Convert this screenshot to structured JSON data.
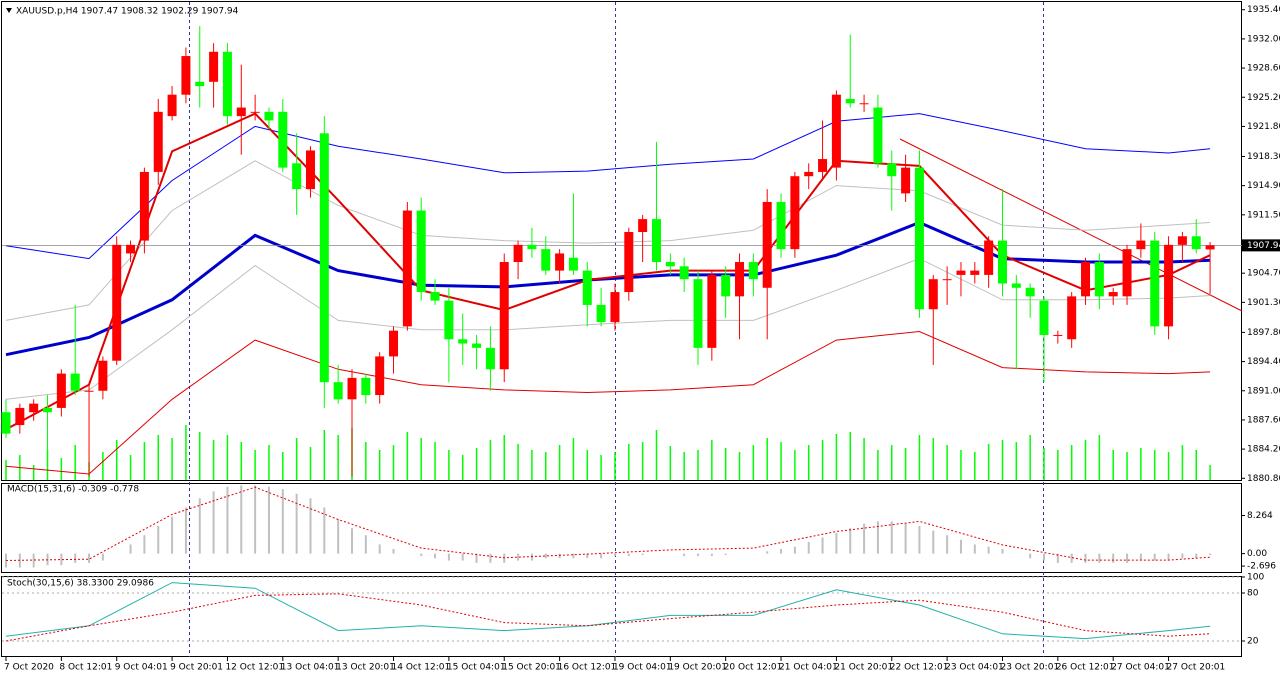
{
  "chart_data": [
    {
      "type": "candlestick",
      "title": "XAUUSD.p,H4 1907.47 1908.32 1902.29 1907.94",
      "categories": [
        "7 Oct 2020",
        null,
        null,
        null,
        "8 Oct 12:01",
        null,
        null,
        null,
        "9 Oct 04:01",
        null,
        null,
        null,
        "9 Oct 20:01",
        null,
        null,
        null,
        "12 Oct 12:01",
        null,
        null,
        null,
        "13 Oct 04:01",
        null,
        null,
        null,
        "13 Oct 20:01",
        null,
        null,
        null,
        "14 Oct 12:01",
        null,
        null,
        null,
        "15 Oct 04:01",
        null,
        null,
        null,
        "15 Oct 20:01",
        null,
        null,
        null,
        "16 Oct 12:01",
        null,
        null,
        null,
        "19 Oct 04:01",
        null,
        null,
        null,
        "19 Oct 20:01",
        null,
        null,
        null,
        "20 Oct 12:01",
        null,
        null,
        null,
        "21 Oct 04:01",
        null,
        null,
        null,
        "21 Oct 20:01",
        null,
        null,
        null,
        "22 Oct 12:01",
        null,
        null,
        null,
        "23 Oct 04:01",
        null,
        null,
        null,
        "23 Oct 20:01",
        null,
        null,
        null,
        "26 Oct 12:01",
        null,
        null,
        null,
        "27 Oct 04:01",
        null,
        null,
        null,
        "27 Oct 20:01",
        null,
        null,
        null
      ],
      "ohlc": [
        [
          1888.5,
          1890.0,
          1885.5,
          1886.0
        ],
        [
          1887.0,
          1889.5,
          1886.0,
          1889.0
        ],
        [
          1888.5,
          1890.0,
          1887.5,
          1889.5
        ],
        [
          1889.0,
          1890.5,
          1884.0,
          1888.5
        ],
        [
          1889.0,
          1893.5,
          1888.0,
          1893.0
        ],
        [
          1893.0,
          1901.0,
          1890.5,
          1891.0
        ],
        [
          1891.0,
          1892.0,
          1881.0,
          1891.0
        ],
        [
          1891.0,
          1895.0,
          1890.0,
          1894.5
        ],
        [
          1894.5,
          1909.0,
          1894.0,
          1908.0
        ],
        [
          1907.0,
          1908.5,
          1906.0,
          1908.0
        ],
        [
          1908.5,
          1917.0,
          1907.0,
          1916.5
        ],
        [
          1916.5,
          1925.0,
          1915.0,
          1923.5
        ],
        [
          1923.0,
          1926.5,
          1922.5,
          1925.5
        ],
        [
          1925.5,
          1931.0,
          1924.5,
          1930.0
        ],
        [
          1927.0,
          1933.5,
          1924.0,
          1926.5
        ],
        [
          1927.0,
          1931.5,
          1924.0,
          1930.5
        ],
        [
          1930.5,
          1931.5,
          1922.0,
          1923.0
        ],
        [
          1923.0,
          1929.0,
          1918.5,
          1924.0
        ],
        [
          1923.5,
          1925.5,
          1922.5,
          1923.5
        ],
        [
          1923.5,
          1924.0,
          1921.5,
          1922.5
        ],
        [
          1923.5,
          1925.0,
          1916.5,
          1917.0
        ],
        [
          1917.5,
          1921.0,
          1911.5,
          1914.5
        ],
        [
          1914.5,
          1919.5,
          1913.5,
          1919.0
        ],
        [
          1921.0,
          1923.0,
          1889.0,
          1892.0
        ],
        [
          1892.0,
          1894.0,
          1889.5,
          1890.0
        ],
        [
          1890.0,
          1893.5,
          1881.0,
          1892.5
        ],
        [
          1892.5,
          1893.0,
          1889.5,
          1890.5
        ],
        [
          1890.5,
          1895.5,
          1889.5,
          1895.0
        ],
        [
          1895.0,
          1898.5,
          1893.0,
          1898.0
        ],
        [
          1898.5,
          1913.0,
          1898.0,
          1912.0
        ],
        [
          1912.0,
          1913.5,
          1901.5,
          1902.5
        ],
        [
          1902.5,
          1904.0,
          1901.0,
          1901.5
        ],
        [
          1901.5,
          1903.0,
          1892.0,
          1897.0
        ],
        [
          1897.0,
          1900.0,
          1894.0,
          1896.5
        ],
        [
          1896.5,
          1897.5,
          1893.5,
          1896.0
        ],
        [
          1896.0,
          1898.5,
          1891.0,
          1893.5
        ],
        [
          1893.5,
          1907.0,
          1892.0,
          1906.0
        ],
        [
          1906.0,
          1908.5,
          1904.0,
          1908.0
        ],
        [
          1908.0,
          1910.0,
          1906.5,
          1907.5
        ],
        [
          1907.5,
          1909.0,
          1904.5,
          1905.0
        ],
        [
          1905.0,
          1907.5,
          1903.5,
          1907.0
        ],
        [
          1906.5,
          1914.0,
          1904.5,
          1905.0
        ],
        [
          1905.0,
          1906.0,
          1898.5,
          1901.0
        ],
        [
          1901.0,
          1903.0,
          1898.5,
          1899.0
        ],
        [
          1899.0,
          1903.5,
          1898.0,
          1902.5
        ],
        [
          1902.5,
          1910.0,
          1901.5,
          1909.5
        ],
        [
          1909.5,
          1911.5,
          1906.0,
          1911.0
        ],
        [
          1911.0,
          1920.0,
          1905.0,
          1906.0
        ],
        [
          1906.0,
          1907.0,
          1904.5,
          1905.5
        ],
        [
          1905.5,
          1906.5,
          1902.5,
          1904.0
        ],
        [
          1904.0,
          1905.0,
          1894.0,
          1896.0
        ],
        [
          1896.0,
          1905.0,
          1894.5,
          1904.5
        ],
        [
          1904.5,
          1905.5,
          1899.5,
          1902.0
        ],
        [
          1902.0,
          1907.0,
          1897.0,
          1906.0
        ],
        [
          1906.0,
          1907.0,
          1902.0,
          1904.0
        ],
        [
          1903.0,
          1914.5,
          1897.0,
          1913.0
        ],
        [
          1913.0,
          1914.0,
          1906.5,
          1907.5
        ],
        [
          1907.5,
          1916.5,
          1906.5,
          1916.0
        ],
        [
          1916.0,
          1917.5,
          1914.5,
          1916.5
        ],
        [
          1916.5,
          1922.5,
          1915.5,
          1918.0
        ],
        [
          1917.0,
          1926.0,
          1915.5,
          1925.5
        ],
        [
          1925.0,
          1932.5,
          1924.0,
          1924.5
        ],
        [
          1924.5,
          1925.5,
          1923.5,
          1924.5
        ],
        [
          1924.0,
          1925.5,
          1917.0,
          1917.5
        ],
        [
          1917.5,
          1919.0,
          1912.0,
          1916.0
        ],
        [
          1914.0,
          1918.5,
          1913.0,
          1917.0
        ],
        [
          1917.0,
          1919.0,
          1899.5,
          1900.5
        ],
        [
          1900.5,
          1904.5,
          1894.0,
          1904.0
        ],
        [
          1904.0,
          1905.5,
          1901.0,
          1904.0
        ],
        [
          1904.5,
          1906.0,
          1902.0,
          1905.0
        ],
        [
          1904.5,
          1906.0,
          1903.5,
          1905.0
        ],
        [
          1904.5,
          1909.0,
          1903.0,
          1908.5
        ],
        [
          1908.5,
          1914.5,
          1902.0,
          1903.5
        ],
        [
          1903.5,
          1904.5,
          1893.5,
          1903.0
        ],
        [
          1903.0,
          1903.5,
          1899.5,
          1902.0
        ],
        [
          1901.5,
          1902.0,
          1892.0,
          1897.5
        ],
        [
          1897.5,
          1898.0,
          1896.5,
          1897.5
        ],
        [
          1897.0,
          1902.5,
          1896.0,
          1902.0
        ],
        [
          1902.0,
          1906.5,
          1901.0,
          1906.0
        ],
        [
          1906.0,
          1907.0,
          1900.5,
          1902.0
        ],
        [
          1902.0,
          1903.0,
          1901.0,
          1902.5
        ],
        [
          1902.0,
          1908.0,
          1901.0,
          1907.5
        ],
        [
          1907.5,
          1910.5,
          1906.5,
          1908.5
        ],
        [
          1908.5,
          1909.5,
          1897.5,
          1898.5
        ],
        [
          1898.5,
          1909.0,
          1897.0,
          1908.0
        ],
        [
          1908.0,
          1909.5,
          1906.0,
          1909.0
        ],
        [
          1909.0,
          1911.0,
          1907.0,
          1907.5
        ],
        [
          1907.47,
          1908.32,
          1902.29,
          1907.94
        ]
      ],
      "up_color": "#ff0000",
      "down_color": "#00ff00",
      "volumes": [
        20,
        25,
        15,
        30,
        22,
        35,
        18,
        28,
        40,
        25,
        38,
        45,
        42,
        55,
        48,
        40,
        45,
        38,
        30,
        35,
        28,
        42,
        33,
        50,
        45,
        52,
        38,
        30,
        35,
        48,
        42,
        38,
        30,
        25,
        32,
        40,
        45,
        36,
        30,
        28,
        35,
        42,
        30,
        25,
        28,
        36,
        38,
        50,
        34,
        28,
        30,
        40,
        32,
        28,
        35,
        42,
        38,
        30,
        35,
        40,
        46,
        48,
        42,
        30,
        35,
        32,
        45,
        42,
        35,
        30,
        28,
        36,
        40,
        38,
        45,
        32,
        30,
        35,
        40,
        45,
        30,
        28,
        32,
        30,
        28,
        35,
        30,
        15
      ],
      "volume_color": "#00ff00",
      "line_x": [
        0,
        6,
        12,
        18,
        24,
        30,
        36,
        42,
        48,
        54,
        60,
        66,
        72,
        78,
        84,
        87
      ],
      "lines": [
        {
          "color": "#c0c0c0",
          "width": 1,
          "values": [
            1899.2,
            1901.0,
            1912.0,
            1917.8,
            1912.6,
            1909.1,
            1908.5,
            1908.2,
            1908.5,
            1909.7,
            1914.9,
            1914.3,
            1910.3,
            1909.7,
            1910.3,
            1910.6
          ]
        },
        {
          "color": "#c0c0c0",
          "width": 1,
          "values": [
            1890.0,
            1891.1,
            1898.1,
            1905.6,
            1899.2,
            1898.1,
            1898.1,
            1898.7,
            1899.2,
            1899.2,
            1902.7,
            1906.4,
            1901.6,
            1901.6,
            1901.8,
            1902.1
          ]
        },
        {
          "color": "#0000ff",
          "width": 1,
          "values": [
            1907.9,
            1906.4,
            1915.5,
            1921.8,
            1919.5,
            1918.0,
            1916.4,
            1916.6,
            1917.4,
            1918.0,
            1922.4,
            1923.3,
            1921.3,
            1919.2,
            1918.7,
            1919.2
          ]
        },
        {
          "color": "#e00000",
          "width": 1,
          "values": [
            1882.2,
            1881.3,
            1890.0,
            1896.9,
            1893.5,
            1891.7,
            1891.1,
            1890.8,
            1891.1,
            1891.7,
            1896.9,
            1897.9,
            1893.7,
            1893.2,
            1893.0,
            1893.2
          ]
        },
        {
          "color": "#0000cc",
          "width": 3,
          "values": [
            1895.2,
            1897.2,
            1901.6,
            1909.1,
            1905.0,
            1903.3,
            1903.1,
            1903.9,
            1904.5,
            1904.5,
            1906.8,
            1910.6,
            1906.4,
            1906.0,
            1906.0,
            1906.2
          ]
        },
        {
          "color": "#e00000",
          "width": 2,
          "values": [
            1886.5,
            1891.7,
            1918.9,
            1923.3,
            1913.2,
            1902.7,
            1900.4,
            1903.9,
            1905.0,
            1905.0,
            1917.8,
            1917.2,
            1906.8,
            1902.7,
            1904.5,
            1906.8
          ]
        }
      ],
      "current_price": 1907.94,
      "ylim": [
        1880.6,
        1936.3
      ],
      "yticks": [
        {
          "value": 1935.4,
          "label": "1935.40"
        },
        {
          "value": 1932.0,
          "label": "1932.00"
        },
        {
          "value": 1928.6,
          "label": "1928.60"
        },
        {
          "value": 1925.2,
          "label": "1925.20"
        },
        {
          "value": 1921.8,
          "label": "1921.80"
        },
        {
          "value": 1918.3,
          "label": "1918.30"
        },
        {
          "value": 1914.9,
          "label": "1914.90"
        },
        {
          "value": 1911.5,
          "label": "1911.50"
        },
        {
          "value": 1904.7,
          "label": "1904.70"
        },
        {
          "value": 1901.3,
          "label": "1901.30"
        },
        {
          "value": 1897.8,
          "label": "1897.80"
        },
        {
          "value": 1894.4,
          "label": "1894.40"
        },
        {
          "value": 1891.0,
          "label": "1891.00"
        },
        {
          "value": 1887.6,
          "label": "1887.60"
        },
        {
          "value": 1884.2,
          "label": "1884.20"
        },
        {
          "value": 1880.8,
          "label": "1880.80"
        }
      ]
    },
    {
      "type": "macd",
      "title": "MACD(15,31,6) -0.309 -0.778",
      "values": [
        -3,
        -3,
        -3,
        -2.5,
        -2.5,
        -2,
        -2,
        -1.5,
        0,
        2,
        4,
        6,
        8,
        10,
        12,
        13.5,
        14.5,
        14.8,
        14.8,
        14.5,
        14,
        13,
        12,
        10,
        7.5,
        5.5,
        4,
        2,
        1,
        0,
        -0.5,
        -1,
        -1.5,
        -1.5,
        -2,
        -2,
        -2,
        -1.5,
        -1.5,
        -1,
        -1,
        -1,
        -1,
        -1,
        -0.5,
        -0.5,
        -0.3,
        0,
        0,
        -0.5,
        -0.5,
        -0.5,
        -0.3,
        0,
        0,
        0.5,
        1,
        1.5,
        2.5,
        3.5,
        4.5,
        5.5,
        6.5,
        7,
        7,
        6.5,
        6,
        5,
        4,
        3,
        2,
        1.5,
        1,
        0,
        -1,
        -1.5,
        -2,
        -2,
        -2,
        -2,
        -2,
        -2,
        -1.5,
        -1.5,
        -1.5,
        -1,
        -1,
        -0.309
      ],
      "color": "#c0c0c0",
      "signal_x": [
        0,
        6,
        12,
        18,
        24,
        30,
        36,
        42,
        48,
        54,
        60,
        66,
        72,
        78,
        84,
        87
      ],
      "signal": [
        -1.5,
        -1.2,
        8.5,
        14.4,
        7.4,
        1.2,
        -0.9,
        -0.1,
        0.8,
        1.2,
        4.8,
        7.0,
        1.9,
        -1.4,
        -1.4,
        -0.778
      ],
      "signal_color": "#e00000",
      "ylim": [
        -4.2,
        15.1
      ],
      "yticks": [
        8.264,
        {
          "value": 0,
          "label": "0.00"
        },
        -2.696
      ]
    },
    {
      "type": "stochastic",
      "title": "Stoch(30,15,6) 38.3300 29.0986",
      "x": [
        0,
        6,
        12,
        18,
        24,
        30,
        36,
        42,
        48,
        54,
        60,
        66,
        72,
        78,
        84,
        87
      ],
      "series": [
        {
          "color": "#20b2aa",
          "dash": false,
          "values": [
            26,
            39,
            93,
            86,
            33,
            39,
            33,
            39,
            52,
            52,
            84,
            65,
            29,
            23,
            33,
            38.33
          ]
        },
        {
          "color": "#e00000",
          "dash": true,
          "values": [
            20,
            39,
            56,
            77,
            79,
            65,
            43,
            39,
            48,
            56,
            65,
            71,
            56,
            33,
            26,
            29.0986
          ]
        }
      ],
      "ylim": [
        0,
        100
      ],
      "yticks": [
        100,
        80,
        20
      ]
    }
  ]
}
